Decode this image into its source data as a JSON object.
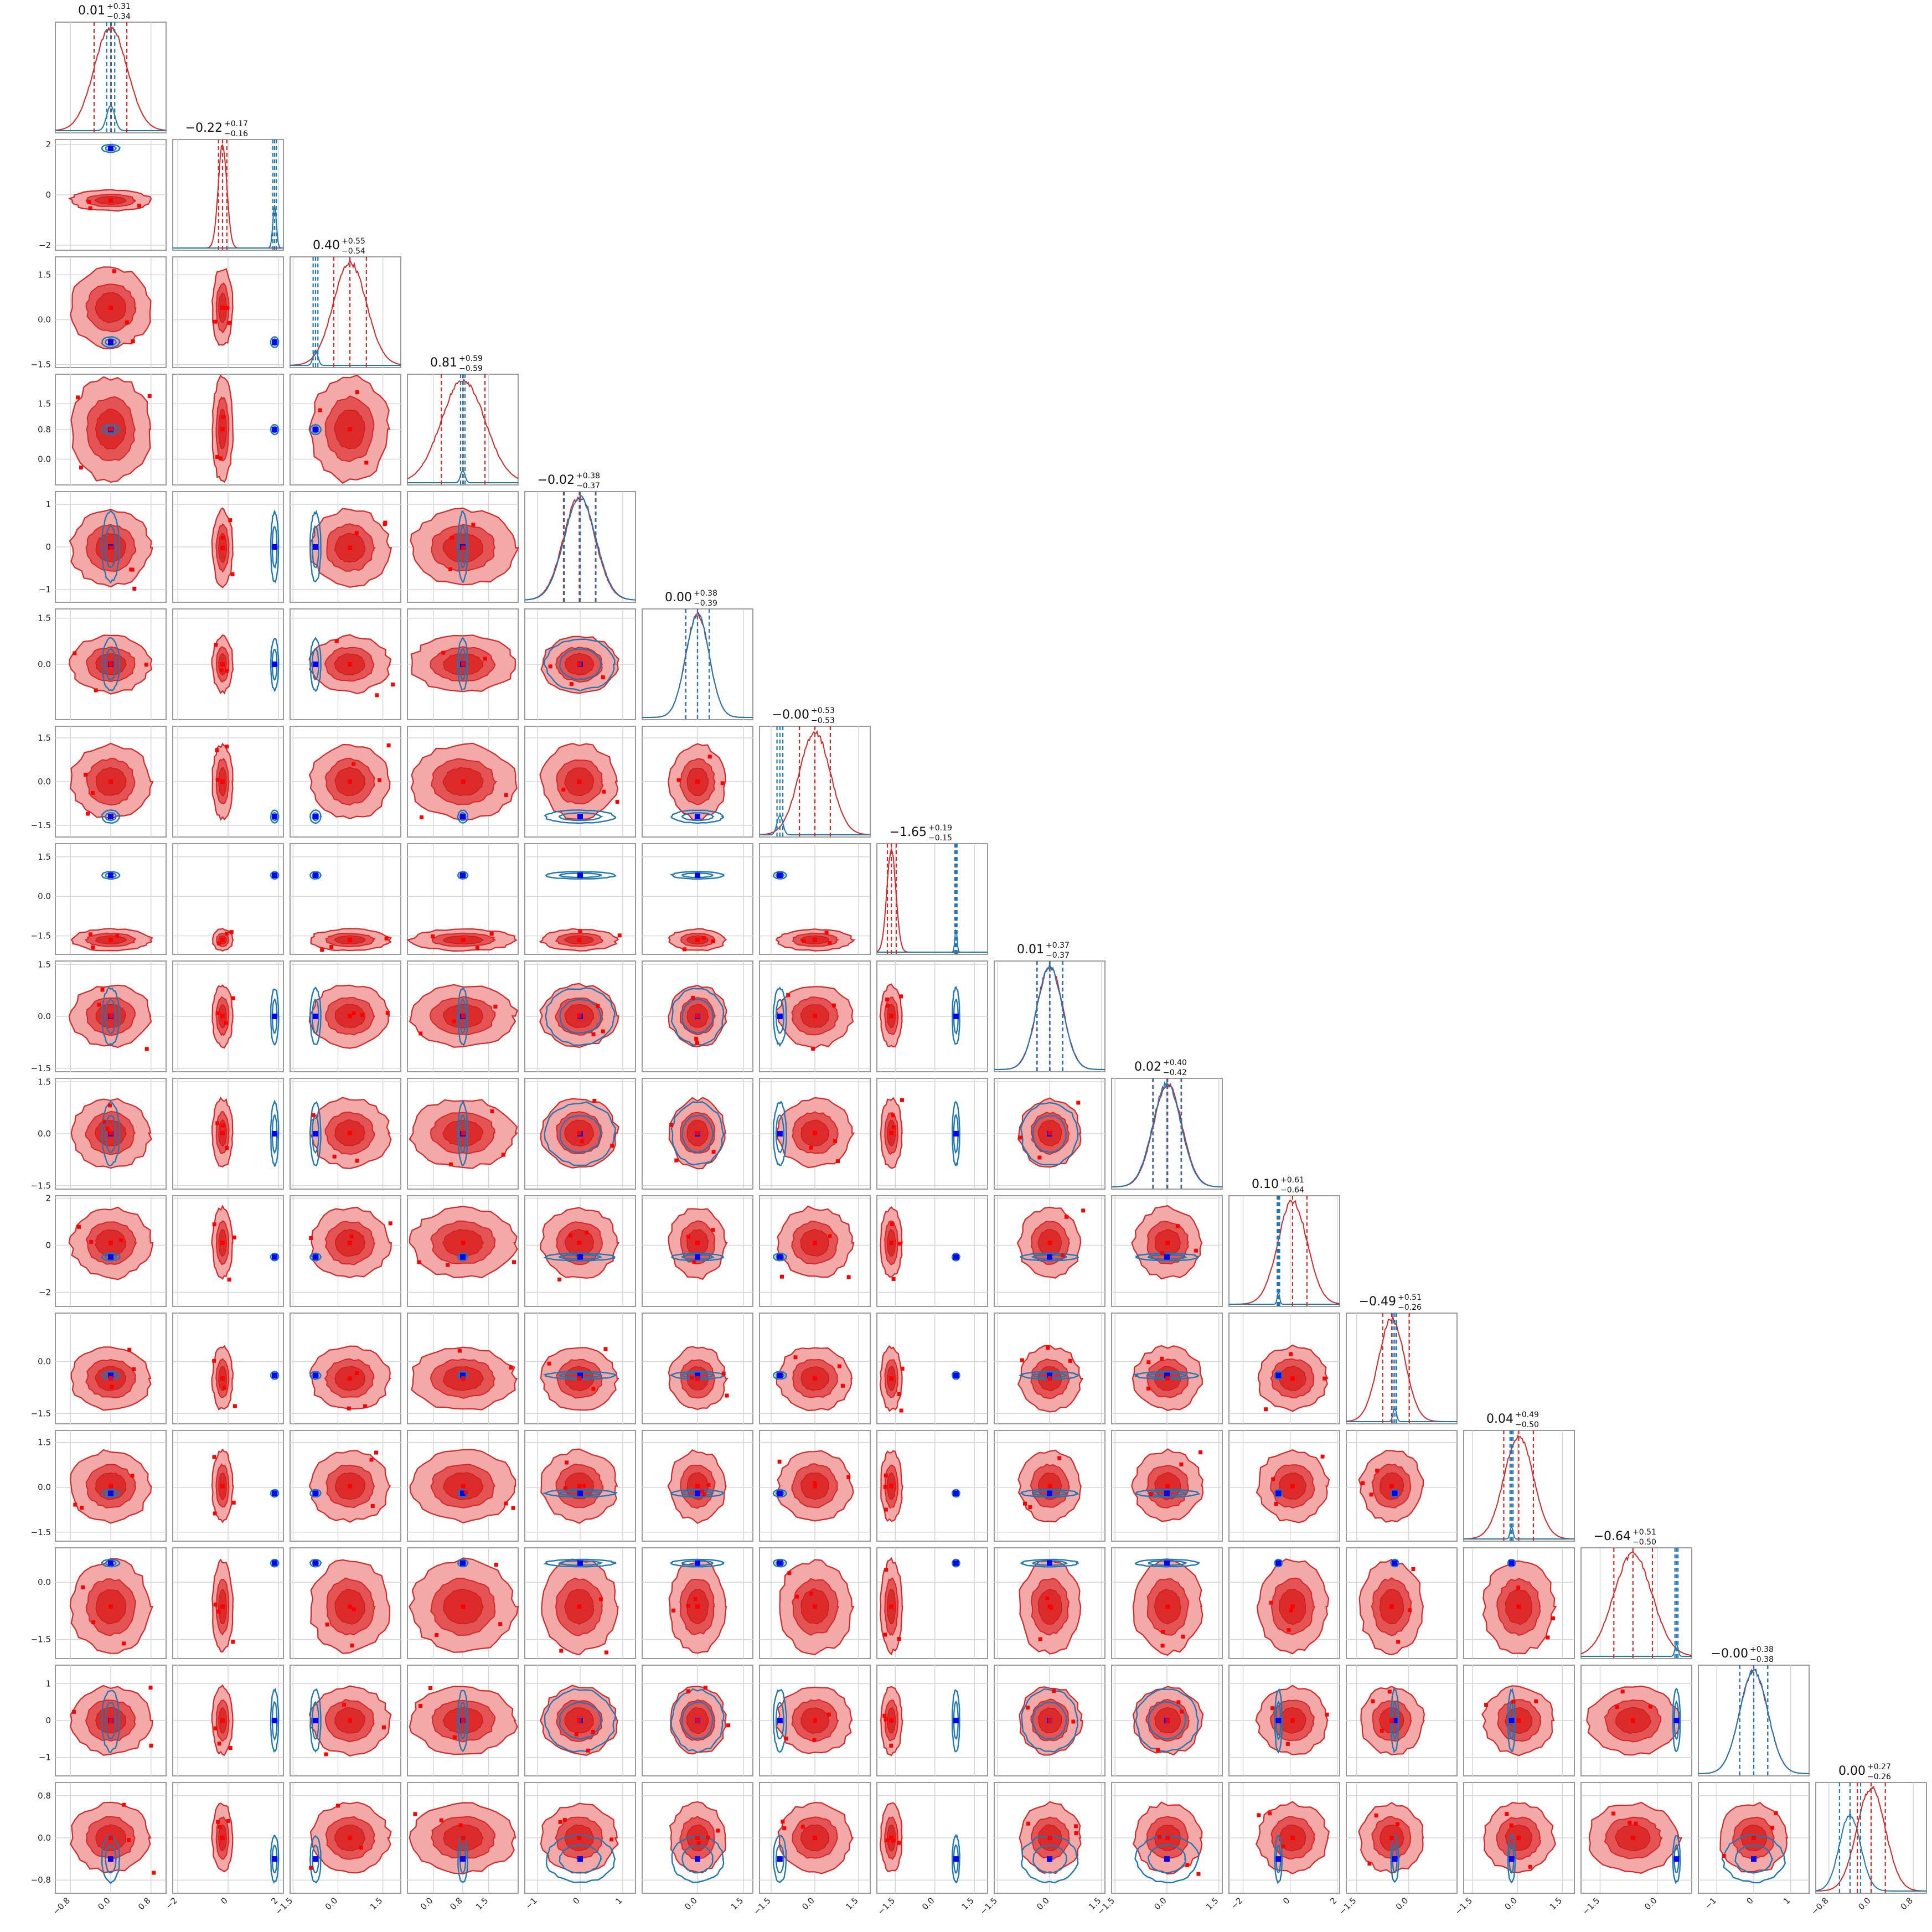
{
  "chart_data": {
    "type": "scatter",
    "subtype": "corner-plot",
    "n_params": 16,
    "series": [
      {
        "name": "",
        "color": "#d62728",
        "role": "broad posterior (filled contours)"
      },
      {
        "name": "",
        "color": "#1f77b4",
        "role": "narrow posterior (line contours)"
      }
    ],
    "marker_colors": {
      "red_points": "#ff0000",
      "blue_points": "#0000ff"
    },
    "params": [
      {
        "title": "0.01",
        "plus": "+0.31",
        "minus": "−0.34",
        "center": 0.01,
        "lo": -0.33,
        "hi": 0.32,
        "red_mu": 0.0,
        "red_sd": 0.33,
        "blue_mu": 0.0,
        "blue_sd": 0.08,
        "range": [
          -1.1,
          1.1
        ],
        "ticks": [
          -0.8,
          0.0,
          0.8
        ],
        "tick_labels": [
          "−0.8",
          "0.0",
          "0.8"
        ]
      },
      {
        "title": "−0.22",
        "plus": "+0.17",
        "minus": "−0.16",
        "center": -0.22,
        "lo": -0.38,
        "hi": -0.05,
        "red_mu": -0.22,
        "red_sd": 0.17,
        "blue_mu": 1.85,
        "blue_sd": 0.07,
        "range": [
          -2.2,
          2.2
        ],
        "ticks": [
          -2,
          0,
          2
        ],
        "tick_labels": [
          "−2",
          "0",
          "2"
        ]
      },
      {
        "title": "0.40",
        "plus": "+0.55",
        "minus": "−0.54",
        "center": 0.4,
        "lo": -0.14,
        "hi": 0.95,
        "red_mu": 0.4,
        "red_sd": 0.55,
        "blue_mu": -0.75,
        "blue_sd": 0.08,
        "range": [
          -1.6,
          2.1
        ],
        "ticks": [
          -1.5,
          0.0,
          1.5
        ],
        "tick_labels": [
          "−1.5",
          "0.0",
          "1.5"
        ]
      },
      {
        "title": "0.81",
        "plus": "+0.59",
        "minus": "−0.59",
        "center": 0.81,
        "lo": 0.22,
        "hi": 1.4,
        "red_mu": 0.81,
        "red_sd": 0.59,
        "blue_mu": 0.8,
        "blue_sd": 0.06,
        "range": [
          -0.7,
          2.3
        ],
        "ticks": [
          0.0,
          0.8,
          1.5
        ],
        "tick_labels": [
          "0.0",
          "0.8",
          "1.5"
        ]
      },
      {
        "title": "−0.02",
        "plus": "+0.38",
        "minus": "−0.37",
        "center": -0.02,
        "lo": -0.39,
        "hi": 0.36,
        "red_mu": -0.02,
        "red_sd": 0.37,
        "blue_mu": 0.0,
        "blue_sd": 0.37,
        "range": [
          -1.3,
          1.3
        ],
        "ticks": [
          -1,
          0,
          1
        ],
        "tick_labels": [
          "−1",
          "0",
          "1"
        ]
      },
      {
        "title": "0.00",
        "plus": "+0.38",
        "minus": "−0.39",
        "center": 0.0,
        "lo": -0.39,
        "hi": 0.38,
        "red_mu": 0.0,
        "red_sd": 0.38,
        "blue_mu": 0.0,
        "blue_sd": 0.38,
        "range": [
          -1.8,
          1.8
        ],
        "ticks": [
          0.0,
          1.5
        ],
        "tick_labels": [
          "0.0",
          "1.5"
        ]
      },
      {
        "title": "−0.00",
        "plus": "+0.53",
        "minus": "−0.53",
        "center": 0.0,
        "lo": -0.53,
        "hi": 0.53,
        "red_mu": 0.0,
        "red_sd": 0.53,
        "blue_mu": -1.2,
        "blue_sd": 0.1,
        "range": [
          -1.9,
          1.9
        ],
        "ticks": [
          -1.5,
          0.0,
          1.5
        ],
        "tick_labels": [
          "−1.5",
          "0.0",
          "1.5"
        ]
      },
      {
        "title": "−1.65",
        "plus": "+0.19",
        "minus": "−0.15",
        "center": -1.65,
        "lo": -1.8,
        "hi": -1.46,
        "red_mu": -1.65,
        "red_sd": 0.17,
        "blue_mu": 0.8,
        "blue_sd": 0.04,
        "range": [
          -2.2,
          2.0
        ],
        "ticks": [
          -1.5,
          0.0,
          1.5
        ],
        "tick_labels": [
          "−1.5",
          "0.0",
          "1.5"
        ]
      },
      {
        "title": "0.01",
        "plus": "+0.37",
        "minus": "−0.37",
        "center": 0.01,
        "lo": -0.36,
        "hi": 0.38,
        "red_mu": 0.01,
        "red_sd": 0.37,
        "blue_mu": 0.0,
        "blue_sd": 0.37,
        "range": [
          -1.6,
          1.6
        ],
        "ticks": [
          -1.5,
          0.0,
          1.5
        ],
        "tick_labels": [
          "−1.5",
          "0.0",
          "1.5"
        ]
      },
      {
        "title": "0.02",
        "plus": "+0.40",
        "minus": "−0.42",
        "center": 0.02,
        "lo": -0.4,
        "hi": 0.42,
        "red_mu": 0.02,
        "red_sd": 0.41,
        "blue_mu": 0.0,
        "blue_sd": 0.41,
        "range": [
          -1.6,
          1.6
        ],
        "ticks": [
          -1.5,
          0.0,
          1.5
        ],
        "tick_labels": [
          "−1.5",
          "0.0",
          "1.5"
        ]
      },
      {
        "title": "0.10",
        "plus": "+0.61",
        "minus": "−0.64",
        "center": 0.1,
        "lo": -0.54,
        "hi": 0.71,
        "red_mu": 0.1,
        "red_sd": 0.62,
        "blue_mu": -0.5,
        "blue_sd": 0.05,
        "range": [
          -2.6,
          2.1
        ],
        "ticks": [
          -2,
          0,
          2
        ],
        "tick_labels": [
          "−2",
          "0",
          "2"
        ]
      },
      {
        "title": "−0.49",
        "plus": "+0.51",
        "minus": "−0.26",
        "center": -0.49,
        "lo": -0.75,
        "hi": 0.02,
        "red_mu": -0.49,
        "red_sd": 0.38,
        "blue_mu": -0.4,
        "blue_sd": 0.05,
        "range": [
          -1.8,
          1.4
        ],
        "ticks": [
          -1.5,
          0.0
        ],
        "tick_labels": [
          "−1.5",
          "0.0"
        ]
      },
      {
        "title": "0.04",
        "plus": "+0.49",
        "minus": "−0.50",
        "center": 0.04,
        "lo": -0.46,
        "hi": 0.53,
        "red_mu": 0.04,
        "red_sd": 0.49,
        "blue_mu": -0.2,
        "blue_sd": 0.05,
        "range": [
          -1.8,
          1.9
        ],
        "ticks": [
          -1.5,
          0.0,
          1.5
        ],
        "tick_labels": [
          "−1.5",
          "0.0",
          "1.5"
        ]
      },
      {
        "title": "−0.64",
        "plus": "+0.51",
        "minus": "−0.50",
        "center": -0.64,
        "lo": -1.14,
        "hi": -0.13,
        "red_mu": -0.64,
        "red_sd": 0.5,
        "blue_mu": 0.5,
        "blue_sd": 0.04,
        "range": [
          -2.0,
          0.9
        ],
        "ticks": [
          -1.5,
          0.0
        ],
        "tick_labels": [
          "−1.5",
          "0.0"
        ]
      },
      {
        "title": "−0.00",
        "plus": "+0.38",
        "minus": "−0.38",
        "center": 0.0,
        "lo": -0.38,
        "hi": 0.38,
        "red_mu": 0.0,
        "red_sd": 0.38,
        "blue_mu": 0.0,
        "blue_sd": 0.38,
        "range": [
          -1.5,
          1.5
        ],
        "ticks": [
          -1,
          0,
          1
        ],
        "tick_labels": [
          "−1",
          "0",
          "1"
        ]
      },
      {
        "title": "0.00",
        "plus": "+0.27",
        "minus": "−0.26",
        "center": 0.0,
        "lo": -0.26,
        "hi": 0.27,
        "red_mu": 0.0,
        "red_sd": 0.27,
        "blue_mu": -0.4,
        "blue_sd": 0.2,
        "range": [
          -1.05,
          1.05
        ],
        "ticks": [
          -0.8,
          0.0,
          0.8
        ],
        "tick_labels": [
          "−0.8",
          "0.0",
          "0.8"
        ]
      }
    ],
    "grid": true,
    "legend": "none",
    "title": "",
    "xlabel": "",
    "ylabel": ""
  }
}
